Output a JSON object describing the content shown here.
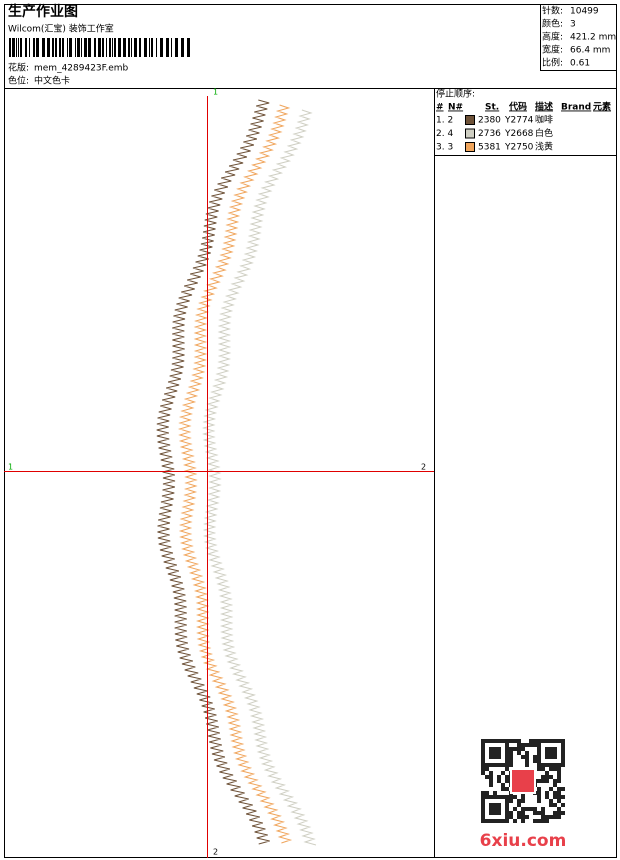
{
  "header": {
    "title": "生产作业图",
    "studio": "Wilcom(汇宝) 装饰工作室",
    "design_label": "花版:",
    "design": "mem_4289423F.emb",
    "palette_label": "色位:",
    "palette": "中文色卡"
  },
  "stats": [
    {
      "label": "针数:",
      "value": "10499"
    },
    {
      "label": "颜色:",
      "value": "3"
    },
    {
      "label": "高度:",
      "value": "421.2 mm"
    },
    {
      "label": "宽度:",
      "value": "66.4 mm"
    },
    {
      "label": "比例:",
      "value": "0.61"
    }
  ],
  "stop_sequence": {
    "title": "停止顺序:",
    "columns": [
      "#",
      "N#",
      "St.",
      "代码",
      "描述",
      "Brand",
      "元素"
    ],
    "rows": [
      {
        "order": "1. 2",
        "color": "#6e5238",
        "stitches": "2380",
        "code": "Y2774",
        "desc": "咖啡"
      },
      {
        "order": "2. 4",
        "color": "#cfcfc3",
        "stitches": "2736",
        "code": "Y2668",
        "desc": "白色"
      },
      {
        "order": "3. 3",
        "color": "#f0a55c",
        "stitches": "5381",
        "code": "Y2750",
        "desc": "浅黄"
      }
    ]
  },
  "axis_labels": {
    "top": "1",
    "bottom": "2",
    "left": "1",
    "right": "2"
  },
  "watermark": "6xiu.com"
}
